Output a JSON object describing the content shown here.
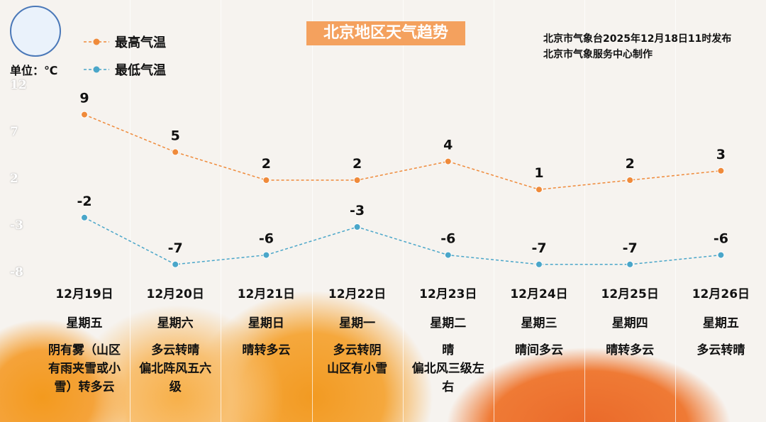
{
  "title": "北京地区天气趋势",
  "publisher": [
    "北京市气象台2025年12月18日11时发布",
    "北京市气象服务中心制作"
  ],
  "unit": "单位：℃",
  "colors": {
    "high": "#ef8a3a",
    "low": "#4aa6c9",
    "title_bg": "#f4a15e"
  },
  "chart_data": {
    "type": "line",
    "ylim": [
      -8,
      12
    ],
    "yticks": [
      12,
      7,
      2,
      -3,
      -8
    ],
    "categories": [
      "12月19日",
      "12月20日",
      "12月21日",
      "12月22日",
      "12月23日",
      "12月24日",
      "12月25日",
      "12月26日"
    ],
    "weekdays": [
      "星期五",
      "星期六",
      "星期日",
      "星期一",
      "星期二",
      "星期三",
      "星期四",
      "星期五"
    ],
    "weather": [
      "阴有雾（山区有雨夹雪或小雪）转多云",
      "多云转晴\n偏北阵风五六级",
      "晴转多云",
      "多云转阴\n山区有小雪",
      "晴\n偏北风三级左右",
      "晴间多云",
      "晴转多云",
      "多云转晴"
    ],
    "series": [
      {
        "name": "最高气温",
        "values": [
          9,
          5,
          2,
          2,
          4,
          1,
          2,
          3
        ]
      },
      {
        "name": "最低气温",
        "values": [
          -2,
          -7,
          -6,
          -3,
          -6,
          -7,
          -7,
          -6
        ]
      }
    ],
    "legend": "top-left"
  }
}
